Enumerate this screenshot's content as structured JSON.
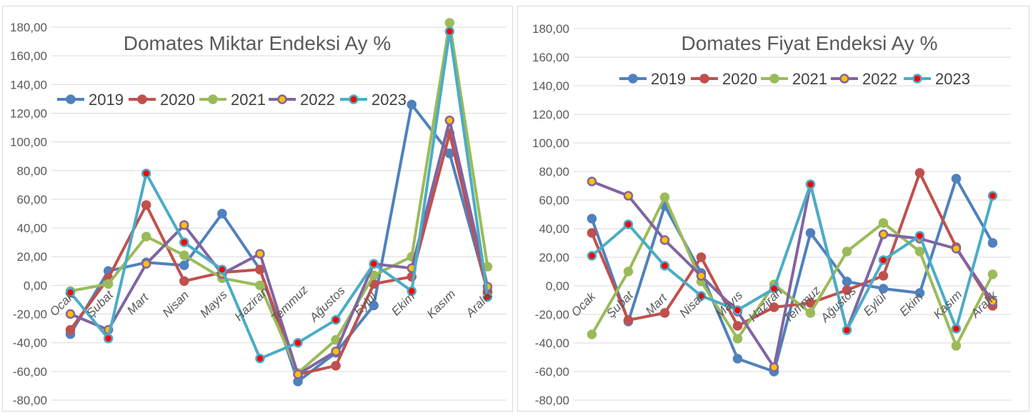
{
  "chart_data": [
    {
      "type": "line",
      "title": "Domates Miktar Endeksi Ay  %",
      "xlabel": "",
      "ylabel": "",
      "ylim": [
        -80,
        180
      ],
      "yticks": [
        "180,00",
        "160,00",
        "140,00",
        "120,00",
        "100,00",
        "80,00",
        "60,00",
        "40,00",
        "20,00",
        "0,00",
        "-20,00",
        "-40,00",
        "-60,00",
        "-80,00"
      ],
      "categories": [
        "Ocak",
        "Şubat",
        "Mart",
        "Nisan",
        "Mayıs",
        "Haziran",
        "Temmuz",
        "Ağustos",
        "Eylül",
        "Ekim",
        "Kasım",
        "Aralık"
      ],
      "grid": true,
      "legend": "top-left",
      "series": [
        {
          "name": "2019",
          "color": "#4f81bd",
          "marker": "#4f81bd",
          "values": [
            -34,
            10,
            16,
            14,
            50,
            11,
            -67,
            -47,
            -14,
            126,
            92,
            -4
          ]
        },
        {
          "name": "2020",
          "color": "#c0504d",
          "marker": "#c0504d",
          "values": [
            -31,
            5,
            56,
            3,
            9,
            11,
            -62,
            -56,
            1,
            6,
            106,
            -5
          ]
        },
        {
          "name": "2021",
          "color": "#9bbb59",
          "marker": "#9bbb59",
          "values": [
            -4,
            1,
            34,
            21,
            5,
            0,
            -61,
            -38,
            7,
            20,
            183,
            13
          ]
        },
        {
          "name": "2022",
          "color": "#8064a2",
          "marker": "#ffc000",
          "values": [
            -20,
            -31,
            15,
            42,
            8,
            22,
            -62,
            -46,
            15,
            12,
            115,
            -1
          ]
        },
        {
          "name": "2023",
          "color": "#4bacc6",
          "marker": "#ff0000",
          "values": [
            -5,
            -37,
            78,
            30,
            11,
            -51,
            -40,
            -24,
            15,
            -4,
            177,
            -8
          ]
        }
      ]
    },
    {
      "type": "line",
      "title": "Domates Fiyat Endeksi Ay %",
      "xlabel": "",
      "ylabel": "",
      "ylim": [
        -80,
        180
      ],
      "yticks": [
        "180,00",
        "160,00",
        "140,00",
        "120,00",
        "100,00",
        "80,00",
        "60,00",
        "40,00",
        "20,00",
        "0,00",
        "-20,00",
        "-40,00",
        "-60,00",
        "-80,00"
      ],
      "categories": [
        "Ocak",
        "Şubat",
        "Mart",
        "Nisan",
        "Mayıs",
        "Haziran",
        "Temmuz",
        "Ağustos",
        "Eylül",
        "Ekim",
        "Kasım",
        "Aralık"
      ],
      "grid": true,
      "legend": "top",
      "series": [
        {
          "name": "2019",
          "color": "#4f81bd",
          "marker": "#4f81bd",
          "values": [
            47,
            -25,
            56,
            9,
            -51,
            -60,
            37,
            3,
            -2,
            -5,
            75,
            30
          ]
        },
        {
          "name": "2020",
          "color": "#c0504d",
          "marker": "#c0504d",
          "values": [
            37,
            -24,
            -19,
            20,
            -28,
            -15,
            -12,
            -3,
            7,
            79,
            27,
            -14
          ]
        },
        {
          "name": "2021",
          "color": "#9bbb59",
          "marker": "#9bbb59",
          "values": [
            -34,
            10,
            62,
            3,
            -37,
            1,
            -19,
            24,
            44,
            24,
            -42,
            8
          ]
        },
        {
          "name": "2022",
          "color": "#8064a2",
          "marker": "#ffc000",
          "values": [
            73,
            63,
            32,
            7,
            -18,
            -57,
            71,
            -31,
            36,
            33,
            26,
            -11
          ]
        },
        {
          "name": "2023",
          "color": "#4bacc6",
          "marker": "#ff0000",
          "values": [
            21,
            43,
            14,
            -7,
            -17,
            -2,
            71,
            -31,
            18,
            35,
            -30,
            63
          ]
        }
      ]
    }
  ]
}
